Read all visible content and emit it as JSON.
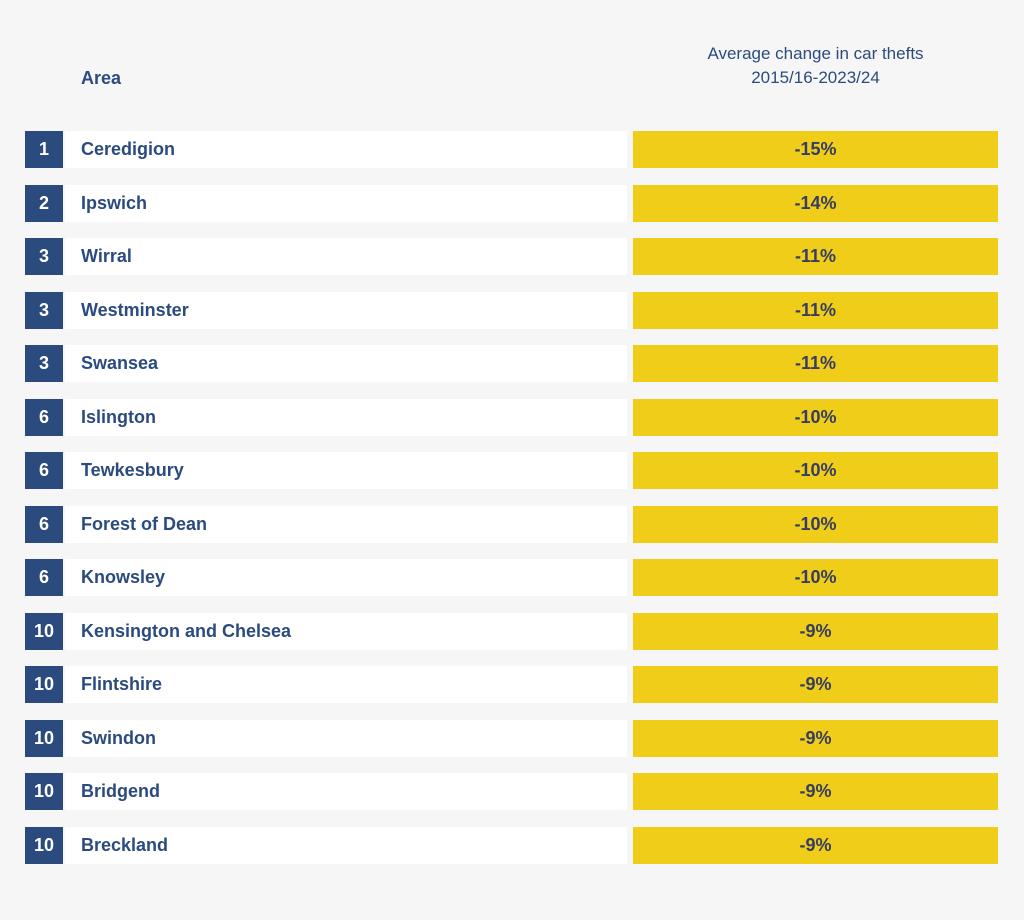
{
  "header": {
    "area_label": "Area",
    "value_label": "Average change in car thefts 2015/16-2023/24"
  },
  "colors": {
    "navy": "#2b4a7e",
    "yellow": "#f0cd19",
    "page_bg": "#f6f6f6",
    "row_bg": "#ffffff",
    "value_text": "#363c63"
  },
  "rows": [
    {
      "rank": "1",
      "area": "Ceredigion",
      "value": "-15%"
    },
    {
      "rank": "2",
      "area": "Ipswich",
      "value": "-14%"
    },
    {
      "rank": "3",
      "area": "Wirral",
      "value": "-11%"
    },
    {
      "rank": "3",
      "area": "Westminster",
      "value": "-11%"
    },
    {
      "rank": "3",
      "area": "Swansea",
      "value": "-11%"
    },
    {
      "rank": "6",
      "area": "Islington",
      "value": "-10%"
    },
    {
      "rank": "6",
      "area": "Tewkesbury",
      "value": "-10%"
    },
    {
      "rank": "6",
      "area": "Forest of Dean",
      "value": "-10%"
    },
    {
      "rank": "6",
      "area": "Knowsley",
      "value": "-10%"
    },
    {
      "rank": "10",
      "area": "Kensington and Chelsea",
      "value": "-9%"
    },
    {
      "rank": "10",
      "area": "Flintshire",
      "value": "-9%"
    },
    {
      "rank": "10",
      "area": "Swindon",
      "value": "-9%"
    },
    {
      "rank": "10",
      "area": "Bridgend",
      "value": "-9%"
    },
    {
      "rank": "10",
      "area": "Breckland",
      "value": "-9%"
    }
  ],
  "chart_data": {
    "type": "table",
    "title": "",
    "columns": [
      "Rank",
      "Area",
      "Average change in car thefts 2015/16-2023/24"
    ],
    "rows": [
      [
        1,
        "Ceredigion",
        -15
      ],
      [
        2,
        "Ipswich",
        -14
      ],
      [
        3,
        "Wirral",
        -11
      ],
      [
        3,
        "Westminster",
        -11
      ],
      [
        3,
        "Swansea",
        -11
      ],
      [
        6,
        "Islington",
        -10
      ],
      [
        6,
        "Tewkesbury",
        -10
      ],
      [
        6,
        "Forest of Dean",
        -10
      ],
      [
        6,
        "Knowsley",
        -10
      ],
      [
        10,
        "Kensington and Chelsea",
        -9
      ],
      [
        10,
        "Flintshire",
        -9
      ],
      [
        10,
        "Swindon",
        -9
      ],
      [
        10,
        "Bridgend",
        -9
      ],
      [
        10,
        "Breckland",
        -9
      ]
    ],
    "value_unit": "%",
    "value_range_shown": [
      -15,
      -9
    ],
    "layout_hints": {
      "bar_style": "uniform-width yellow highlight cells",
      "rank_badge": "navy square, white number",
      "row_background": "white strips on light gray page"
    }
  }
}
